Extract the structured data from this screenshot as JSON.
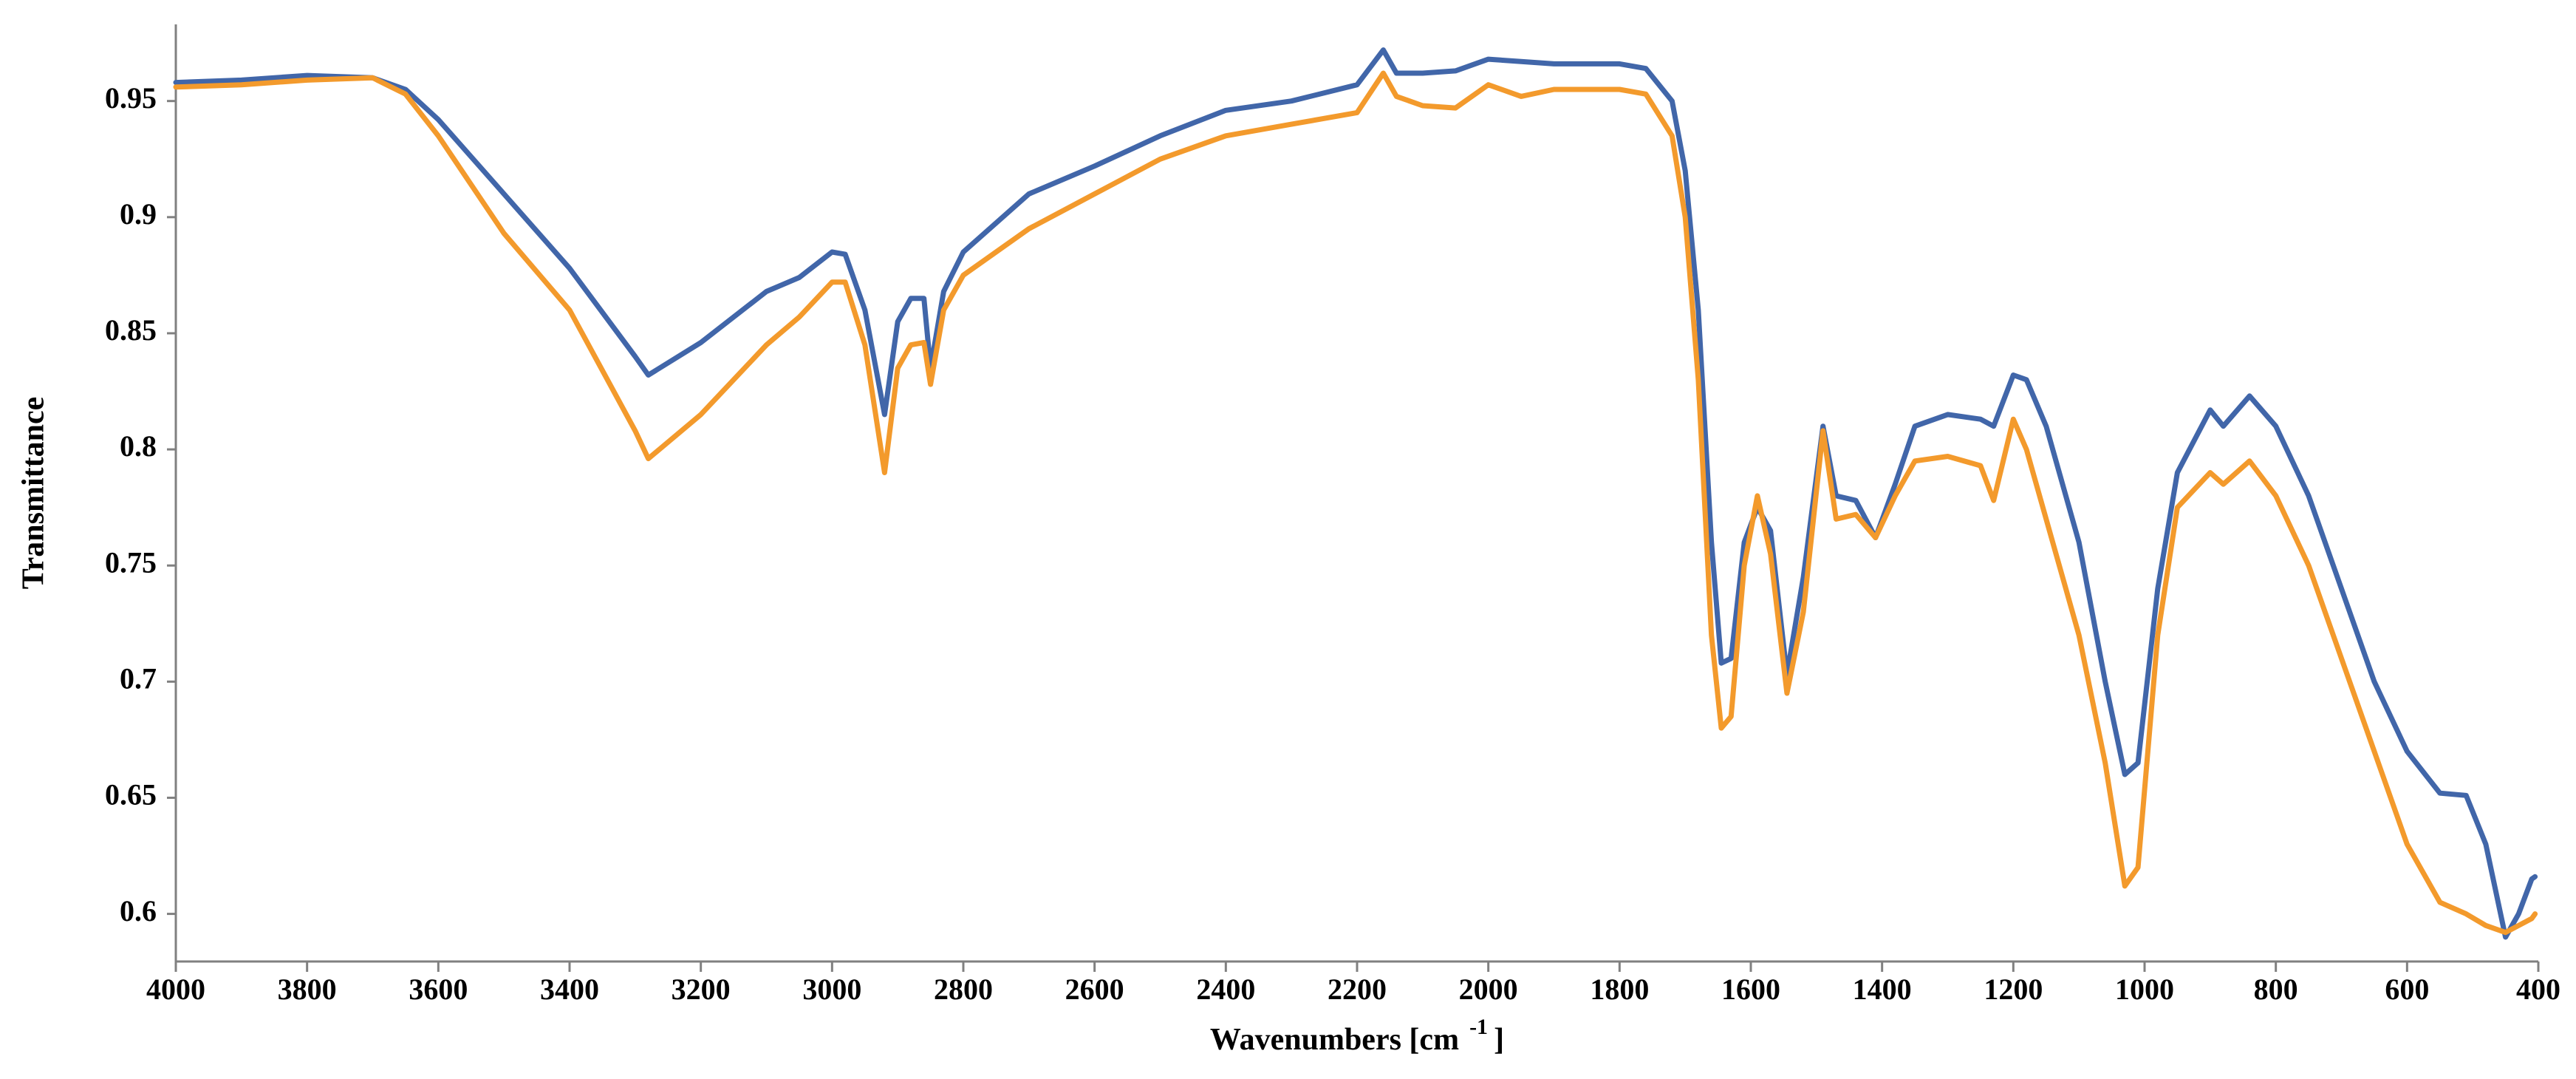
{
  "chart_data": {
    "type": "line",
    "x_label_parts": [
      "Wavenumbers [cm",
      "-1",
      "]"
    ],
    "y_label": "Transmittance",
    "x": [
      4000,
      3900,
      3800,
      3700,
      3650,
      3600,
      3500,
      3400,
      3300,
      3280,
      3200,
      3100,
      3050,
      3000,
      2980,
      2950,
      2920,
      2900,
      2880,
      2860,
      2850,
      2830,
      2800,
      2700,
      2600,
      2500,
      2400,
      2300,
      2200,
      2160,
      2140,
      2100,
      2050,
      2000,
      1950,
      1900,
      1800,
      1760,
      1720,
      1700,
      1680,
      1660,
      1645,
      1630,
      1610,
      1590,
      1570,
      1545,
      1520,
      1490,
      1470,
      1440,
      1410,
      1380,
      1350,
      1300,
      1250,
      1230,
      1200,
      1180,
      1150,
      1100,
      1060,
      1030,
      1010,
      980,
      950,
      900,
      880,
      840,
      800,
      750,
      700,
      650,
      600,
      550,
      510,
      480,
      450,
      430,
      410,
      405
    ],
    "series": [
      {
        "color": "#4166a9",
        "values": [
          0.958,
          0.959,
          0.961,
          0.96,
          0.955,
          0.942,
          0.91,
          0.878,
          0.84,
          0.832,
          0.846,
          0.868,
          0.874,
          0.885,
          0.884,
          0.86,
          0.815,
          0.855,
          0.865,
          0.865,
          0.835,
          0.868,
          0.885,
          0.91,
          0.922,
          0.935,
          0.946,
          0.95,
          0.957,
          0.972,
          0.962,
          0.962,
          0.963,
          0.968,
          0.967,
          0.966,
          0.966,
          0.964,
          0.95,
          0.92,
          0.86,
          0.76,
          0.708,
          0.71,
          0.76,
          0.775,
          0.765,
          0.703,
          0.745,
          0.81,
          0.78,
          0.778,
          0.762,
          0.785,
          0.81,
          0.815,
          0.813,
          0.81,
          0.832,
          0.83,
          0.81,
          0.76,
          0.7,
          0.66,
          0.665,
          0.74,
          0.79,
          0.817,
          0.81,
          0.823,
          0.81,
          0.78,
          0.74,
          0.7,
          0.67,
          0.652,
          0.651,
          0.63,
          0.59,
          0.6,
          0.615,
          0.616
        ]
      },
      {
        "color": "#f39a2c",
        "values": [
          0.956,
          0.957,
          0.959,
          0.96,
          0.953,
          0.935,
          0.893,
          0.86,
          0.808,
          0.796,
          0.815,
          0.845,
          0.857,
          0.872,
          0.872,
          0.845,
          0.79,
          0.835,
          0.845,
          0.846,
          0.828,
          0.86,
          0.875,
          0.895,
          0.91,
          0.925,
          0.935,
          0.94,
          0.945,
          0.962,
          0.952,
          0.948,
          0.947,
          0.957,
          0.952,
          0.955,
          0.955,
          0.953,
          0.935,
          0.9,
          0.83,
          0.72,
          0.68,
          0.685,
          0.75,
          0.78,
          0.755,
          0.695,
          0.73,
          0.808,
          0.77,
          0.772,
          0.762,
          0.78,
          0.795,
          0.797,
          0.793,
          0.778,
          0.813,
          0.8,
          0.77,
          0.72,
          0.665,
          0.612,
          0.62,
          0.72,
          0.775,
          0.79,
          0.785,
          0.795,
          0.78,
          0.75,
          0.71,
          0.67,
          0.63,
          0.605,
          0.6,
          0.595,
          0.592,
          0.595,
          0.598,
          0.6
        ]
      }
    ],
    "xlim": [
      4000,
      400
    ],
    "ylim": [
      0.5795,
      0.983
    ],
    "xticks": [
      4000,
      3800,
      3600,
      3400,
      3200,
      3000,
      2800,
      2600,
      2400,
      2200,
      2000,
      1800,
      1600,
      1400,
      1200,
      1000,
      800,
      600,
      400
    ],
    "yticks": [
      0.6,
      0.65,
      0.7,
      0.75,
      0.8,
      0.85,
      0.9,
      0.95
    ]
  }
}
